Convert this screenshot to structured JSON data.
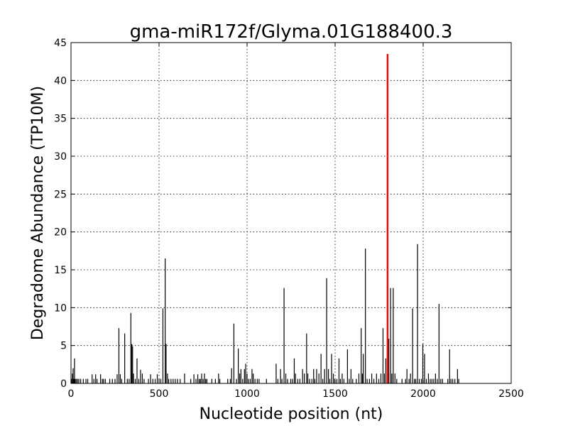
{
  "chart_data": {
    "type": "bar",
    "title": "gma-miR172f/Glyma.01G188400.3",
    "xlabel": "Nucleotide position (nt)",
    "ylabel": "Degradome Abundance (TP10M)",
    "xlim": [
      0,
      2500
    ],
    "ylim": [
      0,
      45
    ],
    "xticks": [
      0,
      500,
      1000,
      1500,
      2000,
      2500
    ],
    "yticks": [
      0,
      5,
      10,
      15,
      20,
      25,
      30,
      35,
      40,
      45
    ],
    "grid": true,
    "colors": {
      "background": "#a0a0a0",
      "bars": "#000000",
      "highlight": "#ff0000"
    },
    "series": [
      {
        "color": "#000000",
        "points": [
          [
            3,
            0.6
          ],
          [
            8,
            1.3
          ],
          [
            12,
            2.0
          ],
          [
            16,
            0.6
          ],
          [
            20,
            3.3
          ],
          [
            24,
            0.6
          ],
          [
            30,
            0.6
          ],
          [
            38,
            0.6
          ],
          [
            45,
            0.6
          ],
          [
            55,
            0.6
          ],
          [
            70,
            0.6
          ],
          [
            85,
            0.6
          ],
          [
            95,
            0.6
          ],
          [
            120,
            1.2
          ],
          [
            130,
            0.6
          ],
          [
            140,
            1.2
          ],
          [
            148,
            0.6
          ],
          [
            168,
            1.2
          ],
          [
            178,
            0.6
          ],
          [
            185,
            0.6
          ],
          [
            195,
            0.6
          ],
          [
            220,
            0.6
          ],
          [
            235,
            0.6
          ],
          [
            250,
            0.6
          ],
          [
            262,
            1.2
          ],
          [
            272,
            7.3
          ],
          [
            280,
            1.2
          ],
          [
            288,
            0.6
          ],
          [
            305,
            6.6
          ],
          [
            320,
            0.6
          ],
          [
            330,
            0.6
          ],
          [
            340,
            9.3
          ],
          [
            345,
            5.2
          ],
          [
            350,
            4.9
          ],
          [
            355,
            1.3
          ],
          [
            365,
            0.6
          ],
          [
            375,
            3.3
          ],
          [
            385,
            0.6
          ],
          [
            395,
            1.8
          ],
          [
            405,
            1.3
          ],
          [
            415,
            0.6
          ],
          [
            440,
            0.6
          ],
          [
            452,
            1.2
          ],
          [
            465,
            0.6
          ],
          [
            478,
            0.6
          ],
          [
            490,
            1.2
          ],
          [
            500,
            0.6
          ],
          [
            510,
            0.6
          ],
          [
            522,
            9.9
          ],
          [
            535,
            16.5
          ],
          [
            540,
            5.2
          ],
          [
            548,
            1.3
          ],
          [
            555,
            0.6
          ],
          [
            568,
            0.6
          ],
          [
            580,
            0.6
          ],
          [
            592,
            0.6
          ],
          [
            605,
            0.6
          ],
          [
            620,
            0.6
          ],
          [
            645,
            1.3
          ],
          [
            680,
            0.6
          ],
          [
            698,
            1.2
          ],
          [
            710,
            0.6
          ],
          [
            720,
            1.2
          ],
          [
            728,
            0.6
          ],
          [
            735,
            0.6
          ],
          [
            742,
            1.3
          ],
          [
            750,
            0.6
          ],
          [
            758,
            1.3
          ],
          [
            765,
            0.6
          ],
          [
            772,
            0.6
          ],
          [
            800,
            0.6
          ],
          [
            820,
            0.6
          ],
          [
            838,
            1.3
          ],
          [
            845,
            0.6
          ],
          [
            890,
            0.6
          ],
          [
            905,
            0.6
          ],
          [
            912,
            2.0
          ],
          [
            925,
            7.9
          ],
          [
            940,
            0.6
          ],
          [
            950,
            4.6
          ],
          [
            958,
            1.3
          ],
          [
            965,
            1.9
          ],
          [
            975,
            0.6
          ],
          [
            985,
            1.9
          ],
          [
            992,
            2.6
          ],
          [
            1000,
            1.3
          ],
          [
            1008,
            0.6
          ],
          [
            1018,
            0.6
          ],
          [
            1028,
            1.9
          ],
          [
            1035,
            1.3
          ],
          [
            1045,
            0.6
          ],
          [
            1058,
            0.6
          ],
          [
            1068,
            0.6
          ],
          [
            1110,
            0.6
          ],
          [
            1165,
            2.6
          ],
          [
            1175,
            0.6
          ],
          [
            1190,
            1.9
          ],
          [
            1198,
            0.6
          ],
          [
            1210,
            12.6
          ],
          [
            1220,
            1.3
          ],
          [
            1230,
            0.6
          ],
          [
            1248,
            0.6
          ],
          [
            1258,
            0.6
          ],
          [
            1268,
            3.3
          ],
          [
            1275,
            1.3
          ],
          [
            1288,
            0.6
          ],
          [
            1300,
            0.6
          ],
          [
            1315,
            1.9
          ],
          [
            1325,
            1.3
          ],
          [
            1338,
            6.6
          ],
          [
            1345,
            1.3
          ],
          [
            1355,
            0.6
          ],
          [
            1368,
            0.6
          ],
          [
            1378,
            1.9
          ],
          [
            1385,
            0.6
          ],
          [
            1395,
            1.9
          ],
          [
            1408,
            1.3
          ],
          [
            1420,
            3.9
          ],
          [
            1430,
            0.6
          ],
          [
            1440,
            1.9
          ],
          [
            1452,
            13.9
          ],
          [
            1462,
            1.9
          ],
          [
            1470,
            0.6
          ],
          [
            1480,
            3.9
          ],
          [
            1490,
            1.3
          ],
          [
            1498,
            0.6
          ],
          [
            1510,
            0.6
          ],
          [
            1522,
            3.3
          ],
          [
            1530,
            0.6
          ],
          [
            1540,
            1.3
          ],
          [
            1550,
            0.6
          ],
          [
            1570,
            4.5
          ],
          [
            1580,
            0.6
          ],
          [
            1590,
            1.9
          ],
          [
            1600,
            0.6
          ],
          [
            1620,
            0.6
          ],
          [
            1635,
            1.3
          ],
          [
            1648,
            7.3
          ],
          [
            1655,
            1.3
          ],
          [
            1660,
            3.9
          ],
          [
            1672,
            17.8
          ],
          [
            1682,
            0.6
          ],
          [
            1695,
            0.6
          ],
          [
            1708,
            1.3
          ],
          [
            1720,
            0.6
          ],
          [
            1735,
            1.3
          ],
          [
            1748,
            0.6
          ],
          [
            1760,
            1.3
          ],
          [
            1772,
            7.3
          ],
          [
            1780,
            1.3
          ],
          [
            1788,
            3.3
          ],
          [
            1805,
            5.9
          ],
          [
            1815,
            12.6
          ],
          [
            1822,
            1.3
          ],
          [
            1830,
            12.6
          ],
          [
            1840,
            1.3
          ],
          [
            1850,
            0.6
          ],
          [
            1880,
            0.6
          ],
          [
            1900,
            0.6
          ],
          [
            1908,
            1.9
          ],
          [
            1920,
            0.6
          ],
          [
            1928,
            1.3
          ],
          [
            1940,
            9.9
          ],
          [
            1950,
            0.6
          ],
          [
            1958,
            0.6
          ],
          [
            1968,
            18.4
          ],
          [
            1978,
            0.6
          ],
          [
            1990,
            0.6
          ],
          [
            1998,
            5.2
          ],
          [
            2008,
            3.9
          ],
          [
            2018,
            0.6
          ],
          [
            2030,
            1.3
          ],
          [
            2040,
            0.6
          ],
          [
            2050,
            0.6
          ],
          [
            2060,
            0.6
          ],
          [
            2070,
            1.3
          ],
          [
            2080,
            0.6
          ],
          [
            2090,
            10.5
          ],
          [
            2100,
            0.6
          ],
          [
            2110,
            0.6
          ],
          [
            2140,
            0.6
          ],
          [
            2150,
            4.5
          ],
          [
            2158,
            0.6
          ],
          [
            2168,
            0.6
          ],
          [
            2180,
            0.6
          ],
          [
            2195,
            1.9
          ],
          [
            2202,
            0.6
          ]
        ]
      },
      {
        "color": "#ff0000",
        "points": [
          [
            1798,
            43.5
          ]
        ]
      }
    ]
  }
}
